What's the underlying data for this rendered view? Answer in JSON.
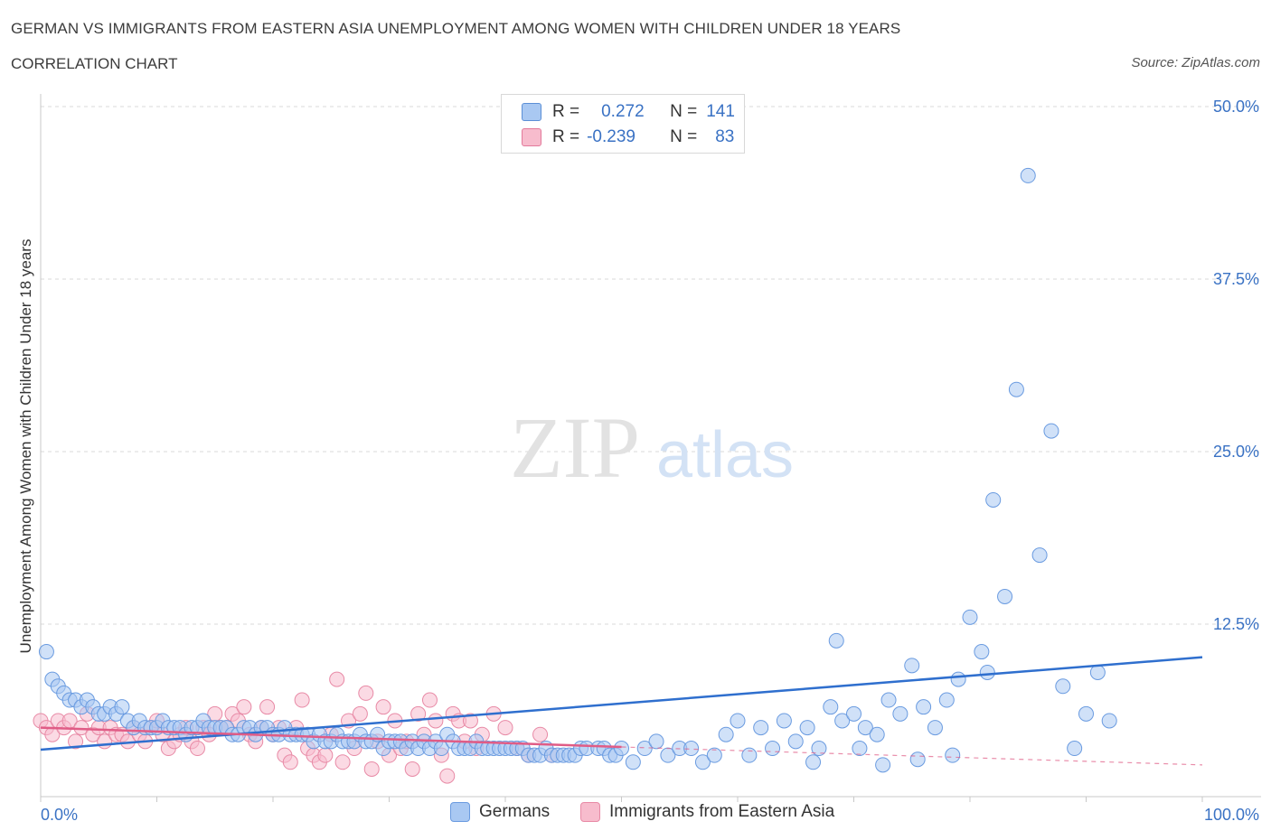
{
  "header": {
    "title": "GERMAN VS IMMIGRANTS FROM EASTERN ASIA UNEMPLOYMENT AMONG WOMEN WITH CHILDREN UNDER 18 YEARS",
    "subtitle": "CORRELATION CHART",
    "source": "Source: ZipAtlas.com"
  },
  "watermark": {
    "zip": "ZIP",
    "atlas": "atlas"
  },
  "stats": {
    "r_label": "R =",
    "n_label": "N =",
    "rows": [
      {
        "r": "0.272",
        "n": "141",
        "color": "#a9c8f2",
        "border": "#5b8fd6"
      },
      {
        "r": "-0.239",
        "n": "83",
        "color": "#f7bccd",
        "border": "#e27a9b"
      }
    ]
  },
  "colors": {
    "blue_fill": "#a9c8f2",
    "blue_stroke": "#6a9be0",
    "blue_line": "#2f6fce",
    "pink_fill": "#f7bccd",
    "pink_stroke": "#e88aa6",
    "pink_line": "#e05c86",
    "axis_text": "#3a72c4"
  },
  "chart_data": {
    "type": "scatter",
    "title": "GERMAN VS IMMIGRANTS FROM EASTERN ASIA UNEMPLOYMENT AMONG WOMEN WITH CHILDREN UNDER 18 YEARS",
    "ylabel": "Unemployment Among Women with Children Under 18 years",
    "xlabel": "",
    "xlim": [
      0,
      100
    ],
    "ylim": [
      0,
      50
    ],
    "x_tick_labels": [
      "0.0%",
      "100.0%"
    ],
    "y_tick_values": [
      12.5,
      25.0,
      37.5,
      50.0
    ],
    "y_tick_labels": [
      "12.5%",
      "25.0%",
      "37.5%",
      "50.0%"
    ],
    "grid": true,
    "legend_placement": "bottom-center",
    "series": [
      {
        "name": "Germans",
        "trend": {
          "x": [
            0,
            100
          ],
          "y": [
            3.4,
            10.1
          ],
          "style": "solid"
        },
        "points": [
          [
            0.5,
            10.5
          ],
          [
            1,
            8.5
          ],
          [
            1.5,
            8
          ],
          [
            2,
            7.5
          ],
          [
            2.5,
            7
          ],
          [
            3,
            7
          ],
          [
            3.5,
            6.5
          ],
          [
            4,
            7
          ],
          [
            4.5,
            6.5
          ],
          [
            5,
            6
          ],
          [
            5.5,
            6
          ],
          [
            6,
            6.5
          ],
          [
            6.5,
            6
          ],
          [
            7,
            6.5
          ],
          [
            7.5,
            5.5
          ],
          [
            8,
            5
          ],
          [
            8.5,
            5.5
          ],
          [
            9,
            5
          ],
          [
            9.5,
            5
          ],
          [
            10,
            5
          ],
          [
            10.5,
            5.5
          ],
          [
            11,
            5
          ],
          [
            11.5,
            5
          ],
          [
            12,
            5
          ],
          [
            12.5,
            4.5
          ],
          [
            13,
            5
          ],
          [
            13.5,
            5
          ],
          [
            14,
            5.5
          ],
          [
            14.5,
            5
          ],
          [
            15,
            5
          ],
          [
            15.5,
            5
          ],
          [
            16,
            5
          ],
          [
            16.5,
            4.5
          ],
          [
            17,
            4.5
          ],
          [
            17.5,
            5
          ],
          [
            18,
            5
          ],
          [
            18.5,
            4.5
          ],
          [
            19,
            5
          ],
          [
            19.5,
            5
          ],
          [
            20,
            4.5
          ],
          [
            20.5,
            4.5
          ],
          [
            21,
            5
          ],
          [
            21.5,
            4.5
          ],
          [
            22,
            4.5
          ],
          [
            22.5,
            4.5
          ],
          [
            23,
            4.5
          ],
          [
            23.5,
            4
          ],
          [
            24,
            4.5
          ],
          [
            24.5,
            4
          ],
          [
            25,
            4
          ],
          [
            25.5,
            4.5
          ],
          [
            26,
            4
          ],
          [
            26.5,
            4
          ],
          [
            27,
            4
          ],
          [
            27.5,
            4.5
          ],
          [
            28,
            4
          ],
          [
            28.5,
            4
          ],
          [
            29,
            4.5
          ],
          [
            29.5,
            3.5
          ],
          [
            30,
            4
          ],
          [
            30.5,
            4
          ],
          [
            31,
            4
          ],
          [
            31.5,
            3.5
          ],
          [
            32,
            4
          ],
          [
            32.5,
            3.5
          ],
          [
            33,
            4
          ],
          [
            33.5,
            3.5
          ],
          [
            34,
            4
          ],
          [
            34.5,
            3.5
          ],
          [
            35,
            4.5
          ],
          [
            35.5,
            4
          ],
          [
            36,
            3.5
          ],
          [
            36.5,
            3.5
          ],
          [
            37,
            3.5
          ],
          [
            37.5,
            4
          ],
          [
            38,
            3.5
          ],
          [
            38.5,
            3.5
          ],
          [
            39,
            3.5
          ],
          [
            39.5,
            3.5
          ],
          [
            40,
            3.5
          ],
          [
            40.5,
            3.5
          ],
          [
            41,
            3.5
          ],
          [
            41.5,
            3.5
          ],
          [
            42,
            3
          ],
          [
            42.5,
            3
          ],
          [
            43,
            3
          ],
          [
            43.5,
            3.5
          ],
          [
            44,
            3
          ],
          [
            44.5,
            3
          ],
          [
            45,
            3
          ],
          [
            45.5,
            3
          ],
          [
            46,
            3
          ],
          [
            46.5,
            3.5
          ],
          [
            47,
            3.5
          ],
          [
            48,
            3.5
          ],
          [
            48.5,
            3.5
          ],
          [
            49,
            3
          ],
          [
            49.5,
            3
          ],
          [
            50,
            3.5
          ],
          [
            51,
            2.5
          ],
          [
            52,
            3.5
          ],
          [
            53,
            4
          ],
          [
            54,
            3
          ],
          [
            55,
            3.5
          ],
          [
            56,
            3.5
          ],
          [
            57,
            2.5
          ],
          [
            58,
            3
          ],
          [
            59,
            4.5
          ],
          [
            60,
            5.5
          ],
          [
            61,
            3
          ],
          [
            62,
            5
          ],
          [
            63,
            3.5
          ],
          [
            64,
            5.5
          ],
          [
            65,
            4
          ],
          [
            66,
            5
          ],
          [
            66.5,
            2.5
          ],
          [
            67,
            3.5
          ],
          [
            68,
            6.5
          ],
          [
            68.5,
            11.3
          ],
          [
            69,
            5.5
          ],
          [
            70,
            6
          ],
          [
            70.5,
            3.5
          ],
          [
            71,
            5
          ],
          [
            72,
            4.5
          ],
          [
            72.5,
            2.3
          ],
          [
            73,
            7
          ],
          [
            74,
            6
          ],
          [
            75,
            9.5
          ],
          [
            75.5,
            2.7
          ],
          [
            76,
            6.5
          ],
          [
            77,
            5
          ],
          [
            78,
            7
          ],
          [
            78.5,
            3
          ],
          [
            79,
            8.5
          ],
          [
            80,
            13
          ],
          [
            81,
            10.5
          ],
          [
            81.5,
            9
          ],
          [
            82,
            21.5
          ],
          [
            83,
            14.5
          ],
          [
            84,
            29.5
          ],
          [
            85,
            45
          ],
          [
            86,
            17.5
          ],
          [
            87,
            26.5
          ],
          [
            88,
            8
          ],
          [
            89,
            3.5
          ],
          [
            90,
            6
          ],
          [
            91,
            9
          ],
          [
            92,
            5.5
          ]
        ]
      },
      {
        "name": "Immigrants from Eastern Asia",
        "trend": {
          "x": [
            0,
            50
          ],
          "y": [
            5.0,
            3.6
          ],
          "style": "solid",
          "dashed_extension_to": [
            100,
            2.3
          ]
        },
        "points": [
          [
            0,
            5.5
          ],
          [
            0.5,
            5
          ],
          [
            1,
            4.5
          ],
          [
            1.5,
            5.5
          ],
          [
            2,
            5
          ],
          [
            2.5,
            5.5
          ],
          [
            3,
            4
          ],
          [
            3.5,
            5
          ],
          [
            4,
            6
          ],
          [
            4.5,
            4.5
          ],
          [
            5,
            5
          ],
          [
            5.5,
            4
          ],
          [
            6,
            5
          ],
          [
            6.5,
            4.5
          ],
          [
            7,
            4.5
          ],
          [
            7.5,
            4
          ],
          [
            8,
            5
          ],
          [
            8.5,
            4.5
          ],
          [
            9,
            4
          ],
          [
            9.5,
            5
          ],
          [
            10,
            5.5
          ],
          [
            10.5,
            4.5
          ],
          [
            11,
            3.5
          ],
          [
            11.5,
            4
          ],
          [
            12,
            4.5
          ],
          [
            12.5,
            5
          ],
          [
            13,
            4
          ],
          [
            13.5,
            3.5
          ],
          [
            14,
            5
          ],
          [
            14.5,
            4.5
          ],
          [
            15,
            6
          ],
          [
            15.5,
            5
          ],
          [
            16,
            5
          ],
          [
            16.5,
            6
          ],
          [
            17,
            5.5
          ],
          [
            17.5,
            6.5
          ],
          [
            18,
            4.5
          ],
          [
            18.5,
            4
          ],
          [
            19,
            5
          ],
          [
            19.5,
            6.5
          ],
          [
            20,
            4.5
          ],
          [
            20.5,
            5
          ],
          [
            21,
            3
          ],
          [
            21.5,
            2.5
          ],
          [
            22,
            5
          ],
          [
            22.5,
            7
          ],
          [
            23,
            3.5
          ],
          [
            23.5,
            3
          ],
          [
            24,
            2.5
          ],
          [
            24.5,
            3
          ],
          [
            25,
            4.5
          ],
          [
            25.5,
            8.5
          ],
          [
            26,
            2.5
          ],
          [
            26.5,
            5.5
          ],
          [
            27,
            3.5
          ],
          [
            27.5,
            6
          ],
          [
            28,
            7.5
          ],
          [
            28.5,
            2
          ],
          [
            29,
            4
          ],
          [
            29.5,
            6.5
          ],
          [
            30,
            3
          ],
          [
            30.5,
            5.5
          ],
          [
            31,
            3.5
          ],
          [
            31.5,
            4
          ],
          [
            32,
            2
          ],
          [
            32.5,
            6
          ],
          [
            33,
            4.5
          ],
          [
            33.5,
            7
          ],
          [
            34,
            5.5
          ],
          [
            34.5,
            3
          ],
          [
            35,
            1.5
          ],
          [
            35.5,
            6
          ],
          [
            36,
            5.5
          ],
          [
            36.5,
            4
          ],
          [
            37,
            5.5
          ],
          [
            37.5,
            3.5
          ],
          [
            38,
            4.5
          ],
          [
            39,
            6
          ],
          [
            40,
            5
          ],
          [
            41,
            3.5
          ],
          [
            42,
            3
          ],
          [
            43,
            4.5
          ],
          [
            44,
            3
          ]
        ]
      }
    ]
  },
  "legend": {
    "items": [
      {
        "label": "Germans"
      },
      {
        "label": "Immigrants from Eastern Asia"
      }
    ]
  }
}
